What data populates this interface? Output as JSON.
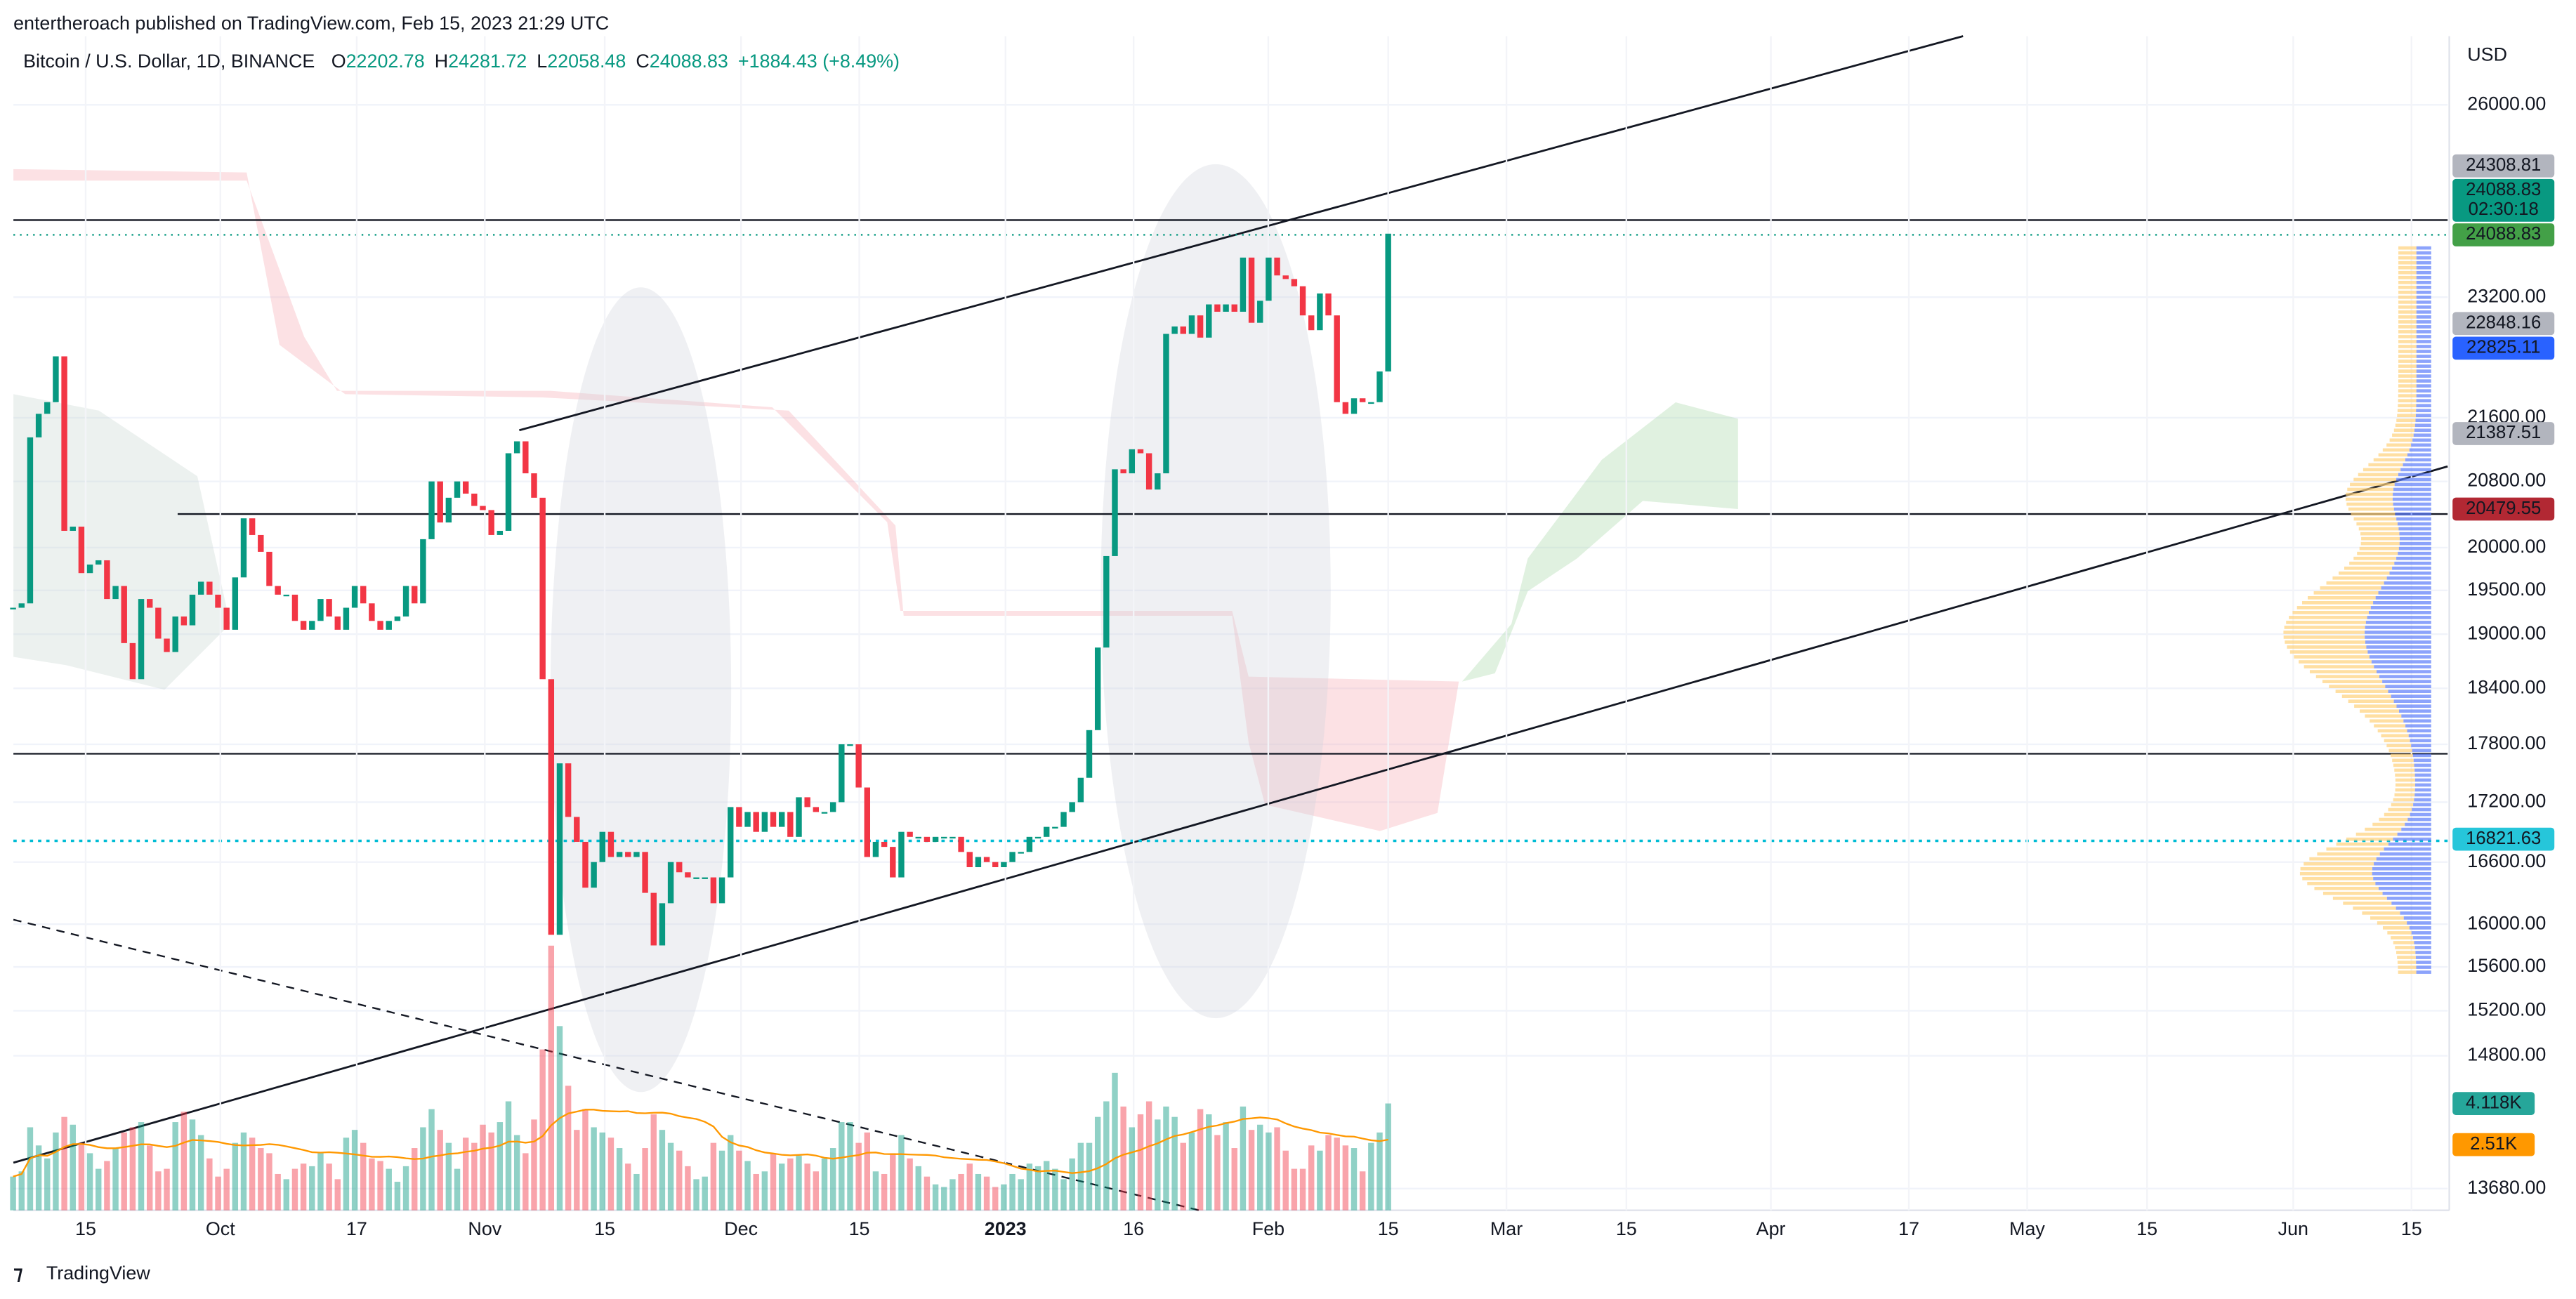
{
  "header": {
    "publisher": "entertheroach published on TradingView.com, Feb 15, 2023 21:29 UTC"
  },
  "chart_data": {
    "type": "candlestick",
    "symbol": "Bitcoin / U.S. Dollar, 1D, BINANCE",
    "ohlc": [
      {
        "key": "O",
        "value": 22202.78
      },
      {
        "key": "H",
        "value": 24281.72
      },
      {
        "key": "L",
        "value": 22058.48
      },
      {
        "key": "C",
        "value": 24088.83
      }
    ],
    "change": "+1884.43 (+8.49%)",
    "currency": "USD",
    "x_labels": [
      "15",
      "Oct",
      "17",
      "Nov",
      "15",
      "Dec",
      "15",
      "2023",
      "16",
      "Feb",
      "15",
      "Mar",
      "15",
      "Apr",
      "17",
      "May",
      "15",
      "Jun",
      "15"
    ],
    "log_scale": true,
    "ylim": [
      13505,
      27080
    ],
    "yticks": [
      {
        "value": 26000,
        "label": "26000.00"
      },
      {
        "value": 23200,
        "label": "23200.00"
      },
      {
        "value": 21600,
        "label": "21600.00"
      },
      {
        "value": 20800,
        "label": "20800.00"
      },
      {
        "value": 20000,
        "label": "20000.00"
      },
      {
        "value": 19500,
        "label": "19500.00"
      },
      {
        "value": 19000,
        "label": "19000.00"
      },
      {
        "value": 18400,
        "label": "18400.00"
      },
      {
        "value": 17800,
        "label": "17800.00"
      },
      {
        "value": 17200,
        "label": "17200.00"
      },
      {
        "value": 16600,
        "label": "16600.00"
      },
      {
        "value": 16000,
        "label": "16000.00"
      },
      {
        "value": 15600,
        "label": "15600.00"
      },
      {
        "value": 15200,
        "label": "15200.00"
      },
      {
        "value": 14800,
        "label": "14800.00"
      },
      {
        "value": 13680,
        "label": "13680.00"
      }
    ],
    "grid": true,
    "up_color": "#089981",
    "down_color": "#f23645",
    "closes": [
      19300,
      19350,
      21350,
      21650,
      21800,
      22400,
      20200,
      20250,
      19700,
      19800,
      19850,
      19400,
      19550,
      18900,
      18500,
      19400,
      19300,
      18950,
      18800,
      19200,
      19100,
      19450,
      19600,
      19450,
      19300,
      19050,
      19650,
      20350,
      20150,
      19950,
      19550,
      19450,
      19450,
      19150,
      19050,
      19150,
      19400,
      19200,
      19050,
      19300,
      19550,
      19350,
      19150,
      19050,
      19150,
      19200,
      19550,
      19350,
      20100,
      20800,
      20300,
      20600,
      20800,
      20650,
      20500,
      20450,
      20150,
      20200,
      21150,
      21300,
      20900,
      20600,
      18500,
      15900,
      17600,
      17050,
      16800,
      16350,
      16600,
      16900,
      16650,
      16700,
      16650,
      16700,
      16300,
      15800,
      16200,
      16600,
      16500,
      16450,
      16450,
      16450,
      16200,
      16450,
      17150,
      16950,
      17100,
      16900,
      17100,
      16950,
      17100,
      16850,
      17250,
      17150,
      17100,
      17100,
      17200,
      17800,
      17800,
      17350,
      16650,
      16800,
      16750,
      16450,
      16900,
      16850,
      16850,
      16800,
      16850,
      16850,
      16850,
      16700,
      16550,
      16650,
      16600,
      16550,
      16600,
      16700,
      16700,
      16850,
      16850,
      16950,
      16950,
      17100,
      17200,
      17450,
      17950,
      18850,
      19900,
      20950,
      20900,
      21200,
      21150,
      20700,
      20900,
      22700,
      22800,
      22700,
      22950,
      22650,
      23100,
      23000,
      23100,
      23000,
      23750,
      22850,
      23150,
      23750,
      23500,
      23450,
      23350,
      22950,
      22750,
      23250,
      22950,
      21800,
      21650,
      21850,
      21800,
      21800,
      22200,
      24088.83
    ],
    "volume": [
      1.3,
      1.5,
      3.2,
      2.5,
      2.0,
      3.0,
      3.6,
      3.3,
      2.6,
      2.2,
      1.6,
      1.9,
      2.4,
      3.0,
      3.2,
      3.4,
      2.5,
      1.5,
      1.6,
      3.4,
      3.8,
      3.5,
      2.9,
      2.0,
      1.3,
      1.6,
      2.6,
      3.0,
      2.8,
      2.4,
      2.2,
      1.4,
      1.2,
      1.6,
      1.8,
      1.7,
      2.2,
      1.8,
      1.2,
      2.8,
      3.1,
      2.6,
      2.0,
      1.9,
      1.6,
      1.1,
      1.7,
      2.4,
      3.2,
      3.9,
      3.1,
      2.6,
      1.6,
      2.8,
      2.6,
      3.3,
      3.0,
      3.4,
      4.2,
      2.9,
      2.2,
      3.5,
      6.2,
      10.2,
      7.1,
      4.8,
      3.1,
      3.9,
      3.2,
      3.0,
      2.8,
      2.4,
      1.8,
      1.4,
      2.4,
      3.7,
      3.1,
      2.6,
      2.3,
      1.7,
      1.2,
      1.3,
      2.6,
      2.3,
      2.9,
      2.3,
      1.9,
      1.4,
      1.5,
      2.2,
      1.8,
      2.0,
      2.1,
      1.8,
      1.5,
      2.0,
      2.4,
      3.4,
      3.4,
      2.6,
      3.0,
      1.5,
      1.4,
      2.2,
      2.9,
      2.0,
      1.7,
      1.3,
      1.0,
      0.9,
      1.2,
      1.4,
      1.8,
      1.4,
      1.3,
      0.9,
      1.0,
      1.4,
      1.2,
      1.8,
      1.7,
      1.9,
      1.6,
      1.2,
      2.0,
      2.6,
      2.6,
      3.6,
      4.2,
      5.3,
      4.0,
      3.2,
      3.7,
      4.2,
      3.5,
      4.0,
      3.6,
      2.6,
      3.0,
      3.9,
      3.7,
      2.9,
      3.4,
      2.4,
      4.0,
      3.1,
      3.3,
      3.0,
      3.2,
      2.3,
      1.6,
      1.6,
      2.5,
      2.3,
      2.9,
      2.8,
      2.5,
      2.4,
      1.5,
      2.6,
      3.0,
      4.118
    ],
    "price_tags": [
      {
        "value": 24308.81,
        "color": "#b2b5be",
        "text_color": "#131722"
      },
      {
        "value": 24088.83,
        "color": "#089981",
        "text_color": "#ffffff"
      },
      {
        "value": 24088.83,
        "color": "#43a047",
        "text_color": "#ffffff"
      },
      {
        "value": 22848.16,
        "color": "#b2b5be",
        "text_color": "#131722"
      },
      {
        "value": 22825.11,
        "color": "#2962ff",
        "text_color": "#ffffff"
      },
      {
        "value": 21387.51,
        "color": "#b2b5be",
        "text_color": "#131722"
      },
      {
        "value": 20479.55,
        "color": "#b22833",
        "text_color": "#ffffff"
      },
      {
        "value": 16821.63,
        "color": "#26c6da",
        "text_color": "#131722"
      }
    ],
    "countdown": "02:30:18",
    "volume_tags": [
      {
        "value": 4.118,
        "label": "4.118K",
        "color": "#26a69a",
        "text_color": "#ffffff"
      },
      {
        "value": 2.51,
        "label": "2.51K",
        "color": "#ff9800",
        "text_color": "#131722"
      }
    ]
  },
  "footer": {
    "brand": "TradingView"
  }
}
